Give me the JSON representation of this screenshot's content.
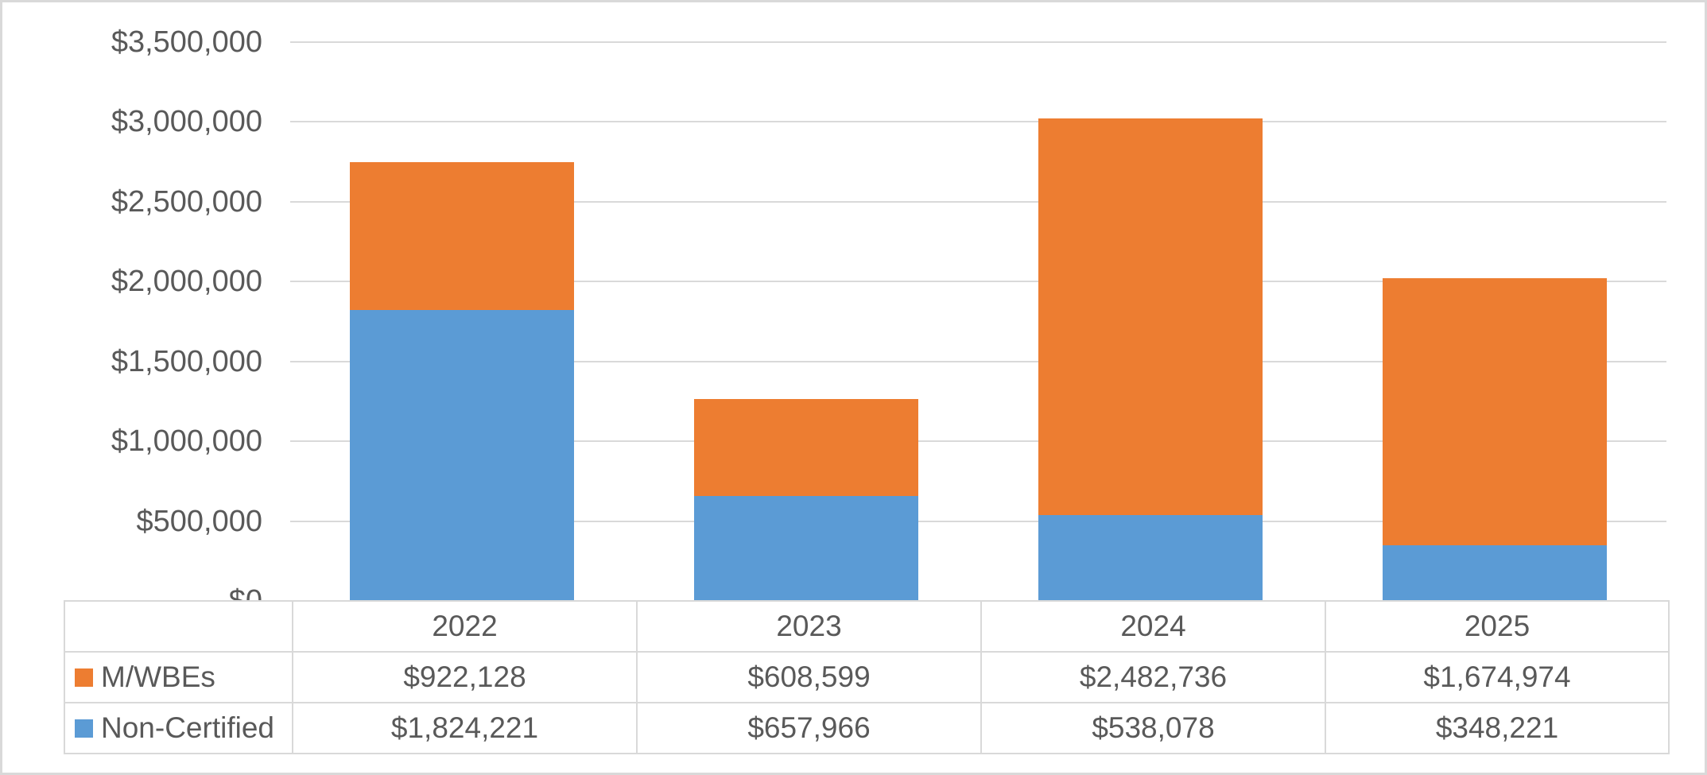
{
  "chart_data": {
    "type": "bar",
    "stacked": true,
    "categories": [
      "2022",
      "2023",
      "2024",
      "2025"
    ],
    "series": [
      {
        "name": "Non-Certified",
        "color": "#5B9BD5",
        "values": [
          1824221,
          657966,
          538078,
          348221
        ],
        "value_labels": [
          "$1,824,221",
          "$657,966",
          "$538,078",
          "$348,221"
        ]
      },
      {
        "name": "M/WBEs",
        "color": "#ED7D31",
        "values": [
          922128,
          608599,
          2482736,
          1674974
        ],
        "value_labels": [
          "$922,128",
          "$608,599",
          "$2,482,736",
          "$1,674,974"
        ]
      }
    ],
    "ylim": [
      0,
      3500000
    ],
    "y_ticks": [
      {
        "value": 0,
        "label": "$0"
      },
      {
        "value": 500000,
        "label": "$500,000"
      },
      {
        "value": 1000000,
        "label": "$1,000,000"
      },
      {
        "value": 1500000,
        "label": "$1,500,000"
      },
      {
        "value": 2000000,
        "label": "$2,000,000"
      },
      {
        "value": 2500000,
        "label": "$2,500,000"
      },
      {
        "value": 3000000,
        "label": "$3,000,000"
      },
      {
        "value": 3500000,
        "label": "$3,500,000"
      }
    ],
    "grid": true,
    "legend_position": "data-table-left"
  },
  "data_table": {
    "columns": [
      "2022",
      "2023",
      "2024",
      "2025"
    ],
    "rows": [
      {
        "label": "M/WBEs",
        "swatch_color": "#ED7D31",
        "values": [
          "$922,128",
          "$608,599",
          "$2,482,736",
          "$1,674,974"
        ]
      },
      {
        "label": "Non-Certified",
        "swatch_color": "#5B9BD5",
        "values": [
          "$1,824,221",
          "$657,966",
          "$538,078",
          "$348,221"
        ]
      }
    ]
  },
  "colors": {
    "mwbes_orange": "#ED7D31",
    "non_certified_blue": "#5B9BD5",
    "gridline_gray": "#D9D9D9",
    "text_gray": "#595959"
  }
}
